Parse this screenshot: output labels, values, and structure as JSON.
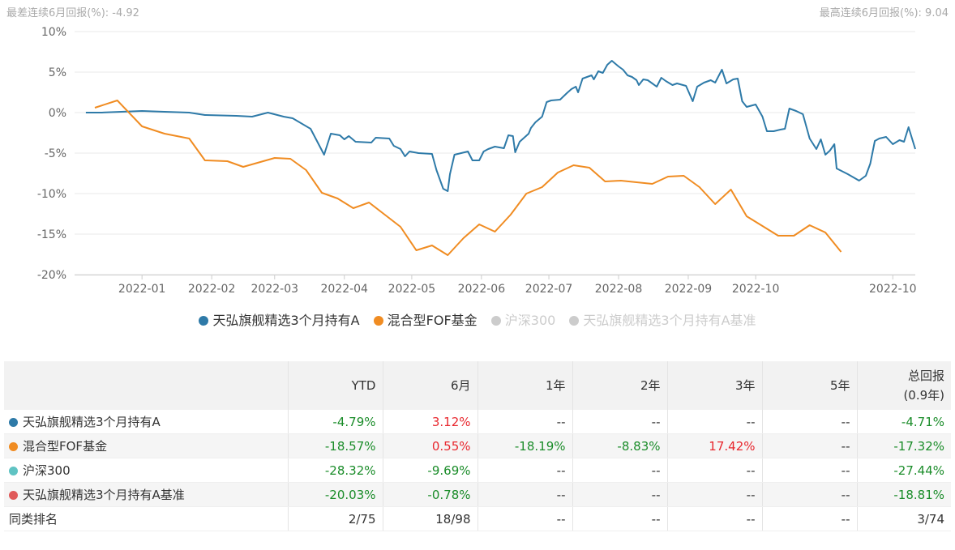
{
  "notes": {
    "left": "最差连续6月回报(%): -4.92",
    "right": "最高连续6月回报(%): 9.04"
  },
  "colors": {
    "fund": "#2e7aa8",
    "category": "#f08c22",
    "hs300": "#5fc3c3",
    "benchmark": "#e05a5a",
    "grid": "#e8e8e8",
    "positive": "#e8272e",
    "negative": "#1a8c29"
  },
  "chart_data": {
    "type": "line",
    "ylim": [
      -20,
      10
    ],
    "yticks": [
      "10%",
      "5%",
      "0%",
      "-5%",
      "-10%",
      "-15%",
      "-20%"
    ],
    "xticks": [
      "2022-01",
      "2022-02",
      "2022-03",
      "2022-04",
      "2022-05",
      "2022-06",
      "2022-07",
      "2022-08",
      "2022-09",
      "2022-10",
      "2022-10"
    ],
    "legend_position": "bottom",
    "series": [
      {
        "name": "天弘旗舰精选3个月持有A",
        "color": "#2e7aa8",
        "visible": true,
        "points": [
          [
            "2021-12-06",
            0.0
          ],
          [
            "2021-12-13",
            0.0
          ],
          [
            "2021-12-31",
            0.2
          ],
          [
            "2022-01-10",
            0.1
          ],
          [
            "2022-01-21",
            0.0
          ],
          [
            "2022-01-28",
            -0.3
          ],
          [
            "2022-02-11",
            -0.4
          ],
          [
            "2022-02-18",
            -0.5
          ],
          [
            "2022-02-25",
            0.0
          ],
          [
            "2022-03-04",
            -0.5
          ],
          [
            "2022-03-08",
            -0.7
          ],
          [
            "2022-03-16",
            -2.0
          ],
          [
            "2022-03-22",
            -5.2
          ],
          [
            "2022-03-25",
            -2.6
          ],
          [
            "2022-03-29",
            -2.8
          ],
          [
            "2022-03-31",
            -3.3
          ],
          [
            "2022-04-02",
            -2.9
          ],
          [
            "2022-04-05",
            -3.6
          ],
          [
            "2022-04-12",
            -3.7
          ],
          [
            "2022-04-14",
            -3.1
          ],
          [
            "2022-04-20",
            -3.2
          ],
          [
            "2022-04-22",
            -4.1
          ],
          [
            "2022-04-25",
            -4.5
          ],
          [
            "2022-04-27",
            -5.4
          ],
          [
            "2022-04-29",
            -4.8
          ],
          [
            "2022-05-03",
            -5.0
          ],
          [
            "2022-05-09",
            -5.1
          ],
          [
            "2022-05-11",
            -7.1
          ],
          [
            "2022-05-14",
            -9.4
          ],
          [
            "2022-05-16",
            -9.7
          ],
          [
            "2022-05-17",
            -7.6
          ],
          [
            "2022-05-19",
            -5.2
          ],
          [
            "2022-05-25",
            -4.8
          ],
          [
            "2022-05-27",
            -5.9
          ],
          [
            "2022-05-30",
            -5.9
          ],
          [
            "2022-06-01",
            -4.8
          ],
          [
            "2022-06-03",
            -4.5
          ],
          [
            "2022-06-06",
            -4.2
          ],
          [
            "2022-06-10",
            -4.4
          ],
          [
            "2022-06-12",
            -2.8
          ],
          [
            "2022-06-14",
            -2.9
          ],
          [
            "2022-06-15",
            -4.9
          ],
          [
            "2022-06-17",
            -3.6
          ],
          [
            "2022-06-21",
            -2.6
          ],
          [
            "2022-06-22",
            -1.9
          ],
          [
            "2022-06-24",
            -1.2
          ],
          [
            "2022-06-27",
            -0.5
          ],
          [
            "2022-06-29",
            1.3
          ],
          [
            "2022-07-01",
            1.5
          ],
          [
            "2022-07-05",
            1.6
          ],
          [
            "2022-07-08",
            2.4
          ],
          [
            "2022-07-10",
            2.9
          ],
          [
            "2022-07-12",
            3.2
          ],
          [
            "2022-07-13",
            2.5
          ],
          [
            "2022-07-15",
            4.2
          ],
          [
            "2022-07-19",
            4.6
          ],
          [
            "2022-07-20",
            4.1
          ],
          [
            "2022-07-22",
            5.1
          ],
          [
            "2022-07-24",
            4.9
          ],
          [
            "2022-07-26",
            5.9
          ],
          [
            "2022-07-28",
            6.4
          ],
          [
            "2022-07-31",
            5.7
          ],
          [
            "2022-08-02",
            5.3
          ],
          [
            "2022-08-04",
            4.6
          ],
          [
            "2022-08-06",
            4.4
          ],
          [
            "2022-08-08",
            4.0
          ],
          [
            "2022-08-09",
            3.4
          ],
          [
            "2022-08-11",
            4.1
          ],
          [
            "2022-08-13",
            4.0
          ],
          [
            "2022-08-15",
            3.6
          ],
          [
            "2022-08-17",
            3.2
          ],
          [
            "2022-08-19",
            4.3
          ],
          [
            "2022-08-21",
            3.9
          ],
          [
            "2022-08-24",
            3.4
          ],
          [
            "2022-08-26",
            3.6
          ],
          [
            "2022-08-30",
            3.3
          ],
          [
            "2022-09-02",
            1.4
          ],
          [
            "2022-09-04",
            3.2
          ],
          [
            "2022-09-07",
            3.7
          ],
          [
            "2022-09-10",
            4.0
          ],
          [
            "2022-09-12",
            3.7
          ],
          [
            "2022-09-15",
            5.3
          ],
          [
            "2022-09-17",
            3.6
          ],
          [
            "2022-09-20",
            4.1
          ],
          [
            "2022-09-22",
            4.2
          ],
          [
            "2022-09-24",
            1.4
          ],
          [
            "2022-09-26",
            0.7
          ],
          [
            "2022-09-30",
            1.0
          ],
          [
            "2022-10-03",
            -0.5
          ],
          [
            "2022-10-05",
            -2.3
          ],
          [
            "2022-10-08",
            -2.3
          ],
          [
            "2022-10-11",
            -2.1
          ],
          [
            "2022-10-13",
            -2.0
          ],
          [
            "2022-10-15",
            0.5
          ],
          [
            "2022-10-18",
            0.2
          ],
          [
            "2022-10-21",
            -0.2
          ],
          [
            "2022-10-24",
            -3.2
          ],
          [
            "2022-10-27",
            -4.5
          ],
          [
            "2022-10-29",
            -3.3
          ],
          [
            "2022-10-31",
            -5.2
          ],
          [
            "2022-11-02",
            -4.7
          ],
          [
            "2022-11-04",
            -3.9
          ],
          [
            "2022-11-05",
            -6.9
          ],
          [
            "2022-11-10",
            -7.6
          ],
          [
            "2022-11-15",
            -8.4
          ],
          [
            "2022-11-18",
            -7.8
          ],
          [
            "2022-11-20",
            -6.3
          ],
          [
            "2022-11-22",
            -3.5
          ],
          [
            "2022-11-24",
            -3.2
          ],
          [
            "2022-11-27",
            -3.0
          ],
          [
            "2022-11-30",
            -3.9
          ],
          [
            "2022-12-03",
            -3.4
          ],
          [
            "2022-12-05",
            -3.6
          ],
          [
            "2022-12-07",
            -1.8
          ],
          [
            "2022-12-10",
            -4.5
          ]
        ]
      },
      {
        "name": "混合型FOF基金",
        "color": "#f08c22",
        "visible": true,
        "points": [
          [
            "2021-12-10",
            0.6
          ],
          [
            "2021-12-20",
            1.5
          ],
          [
            "2021-12-31",
            -1.7
          ],
          [
            "2022-01-10",
            -2.6
          ],
          [
            "2022-01-21",
            -3.2
          ],
          [
            "2022-01-28",
            -5.9
          ],
          [
            "2022-02-07",
            -6.0
          ],
          [
            "2022-02-14",
            -6.7
          ],
          [
            "2022-02-28",
            -5.6
          ],
          [
            "2022-03-07",
            -5.7
          ],
          [
            "2022-03-14",
            -7.1
          ],
          [
            "2022-03-21",
            -9.9
          ],
          [
            "2022-03-28",
            -10.6
          ],
          [
            "2022-04-04",
            -11.8
          ],
          [
            "2022-04-11",
            -11.1
          ],
          [
            "2022-04-18",
            -12.6
          ],
          [
            "2022-04-25",
            -14.1
          ],
          [
            "2022-05-02",
            -17.0
          ],
          [
            "2022-05-09",
            -16.4
          ],
          [
            "2022-05-16",
            -17.6
          ],
          [
            "2022-05-23",
            -15.5
          ],
          [
            "2022-05-30",
            -13.8
          ],
          [
            "2022-06-06",
            -14.7
          ],
          [
            "2022-06-13",
            -12.6
          ],
          [
            "2022-06-20",
            -10.0
          ],
          [
            "2022-06-27",
            -9.2
          ],
          [
            "2022-07-04",
            -7.4
          ],
          [
            "2022-07-11",
            -6.5
          ],
          [
            "2022-07-18",
            -6.8
          ],
          [
            "2022-07-25",
            -8.5
          ],
          [
            "2022-08-01",
            -8.4
          ],
          [
            "2022-08-08",
            -8.6
          ],
          [
            "2022-08-15",
            -8.8
          ],
          [
            "2022-08-22",
            -7.9
          ],
          [
            "2022-08-29",
            -7.8
          ],
          [
            "2022-09-05",
            -9.2
          ],
          [
            "2022-09-12",
            -11.3
          ],
          [
            "2022-09-19",
            -9.5
          ],
          [
            "2022-09-26",
            -12.8
          ],
          [
            "2022-10-03",
            -14.0
          ],
          [
            "2022-10-10",
            -15.2
          ],
          [
            "2022-10-17",
            -15.2
          ],
          [
            "2022-10-24",
            -13.9
          ],
          [
            "2022-10-31",
            -14.8
          ],
          [
            "2022-11-07",
            -17.2
          ]
        ]
      },
      {
        "name": "沪深300",
        "color": "#cccccc",
        "visible": false,
        "points": []
      },
      {
        "name": "天弘旗舰精选3个月持有A基准",
        "color": "#cccccc",
        "visible": false,
        "points": []
      }
    ]
  },
  "legend": [
    {
      "label": "天弘旗舰精选3个月持有A",
      "color": "#2e7aa8",
      "active": true
    },
    {
      "label": "混合型FOF基金",
      "color": "#f08c22",
      "active": true
    },
    {
      "label": "沪深300",
      "color": "#cccccc",
      "active": false
    },
    {
      "label": "天弘旗舰精选3个月持有A基准",
      "color": "#cccccc",
      "active": false
    }
  ],
  "table": {
    "headers": [
      "",
      "YTD",
      "6月",
      "1年",
      "2年",
      "3年",
      "5年"
    ],
    "last_header_line1": "总回报",
    "last_header_line2": "(0.9年)",
    "rows": [
      {
        "name": "天弘旗舰精选3个月持有A",
        "dot": "#2e7aa8",
        "cells": [
          "-4.79%",
          "3.12%",
          "--",
          "--",
          "--",
          "--",
          "-4.71%"
        ]
      },
      {
        "name": "混合型FOF基金",
        "dot": "#f08c22",
        "cells": [
          "-18.57%",
          "0.55%",
          "-18.19%",
          "-8.83%",
          "17.42%",
          "--",
          "-17.32%"
        ]
      },
      {
        "name": "沪深300",
        "dot": "#5fc3c3",
        "cells": [
          "-28.32%",
          "-9.69%",
          "--",
          "--",
          "--",
          "--",
          "-27.44%"
        ]
      },
      {
        "name": "天弘旗舰精选3个月持有A基准",
        "dot": "#e05a5a",
        "cells": [
          "-20.03%",
          "-0.78%",
          "--",
          "--",
          "--",
          "--",
          "-18.81%"
        ]
      },
      {
        "name": "同类排名",
        "dot": "",
        "cells": [
          "2/75",
          "18/98",
          "--",
          "--",
          "--",
          "--",
          "3/74"
        ]
      }
    ]
  }
}
